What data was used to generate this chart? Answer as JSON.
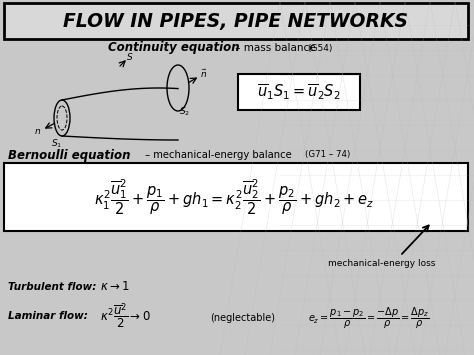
{
  "title": "FLOW IN PIPES, PIPE NETWORKS",
  "bg_color": "#c8c8c8",
  "title_bg": "#d8d8d8",
  "continuity_label": "Continuity equation",
  "continuity_desc": " – mass balance ",
  "continuity_ref": "(G54)",
  "bernoulli_label": "Bernoulli equation",
  "bernoulli_desc": " – mechanical-energy balance ",
  "bernoulli_ref": "(G71 – 74)",
  "turbulent_label": "Turbulent flow:",
  "turbulent_eq": "$\\kappa \\rightarrow 1$",
  "laminar_label": "Laminar flow:",
  "laminar_note": "(neglectable)",
  "mech_energy_note": "mechanical-energy loss"
}
